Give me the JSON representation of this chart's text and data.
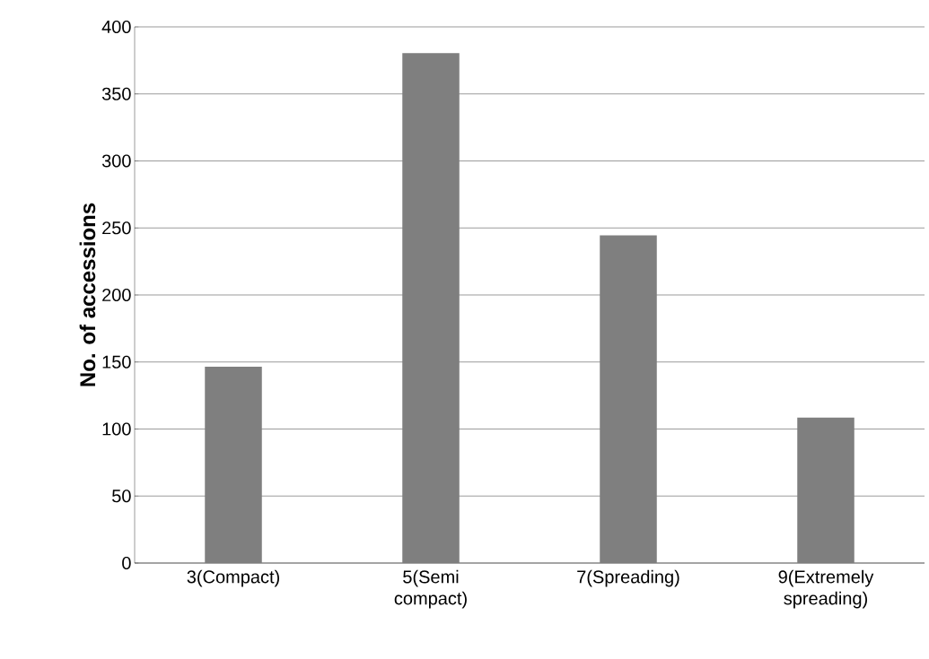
{
  "chart_data": {
    "type": "bar",
    "ylabel": "No. of accessions",
    "categories": [
      "3(Compact)",
      "5(Semi compact)",
      "7(Spreading)",
      "9(Extremely spreading)"
    ],
    "values": [
      146,
      380,
      244,
      108
    ],
    "color": "#7f7f7f",
    "ylim": [
      0,
      400
    ],
    "yticks": [
      0,
      50,
      100,
      150,
      200,
      250,
      300,
      350,
      400
    ],
    "grid": "y"
  }
}
